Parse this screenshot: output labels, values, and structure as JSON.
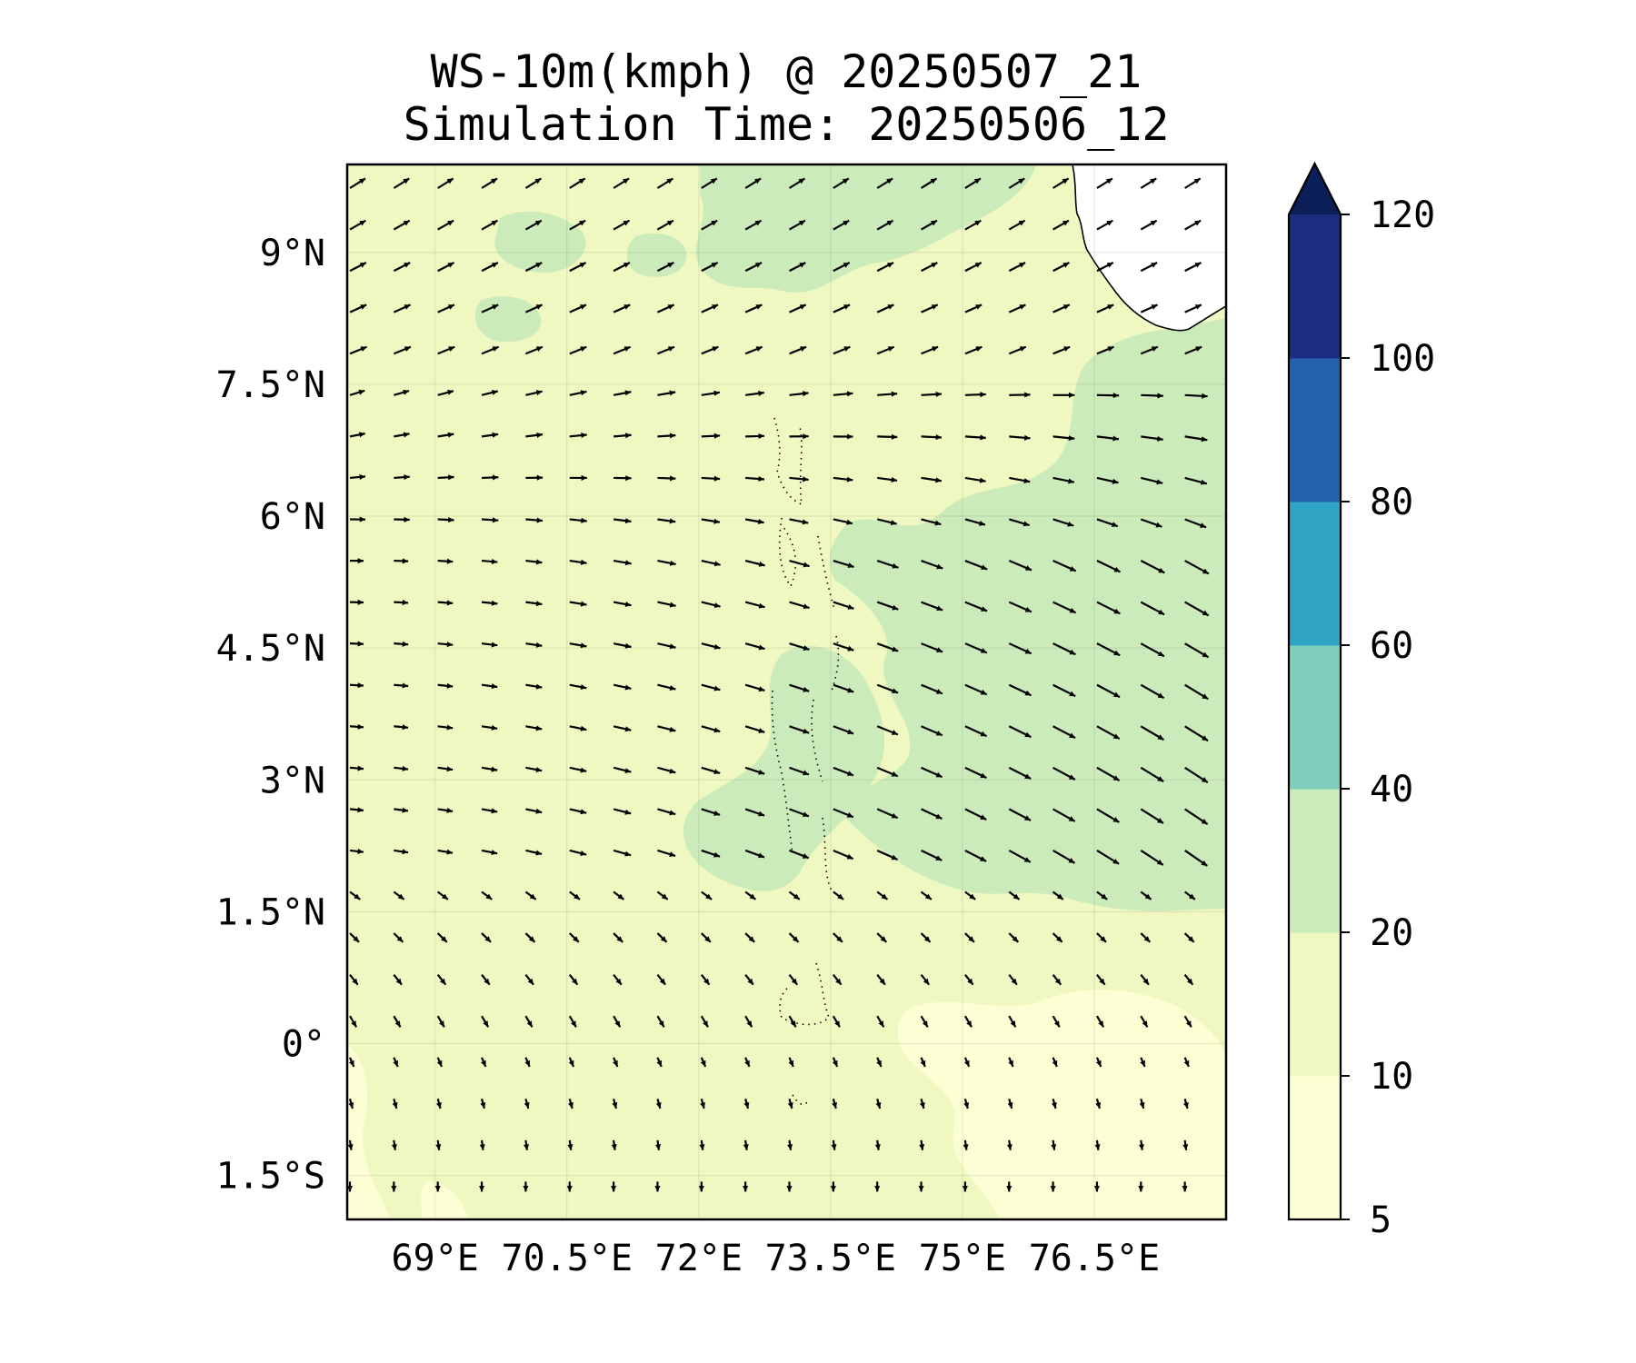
{
  "title": "WS-10m(kmph) @ 20250507_21",
  "subtitle": "Simulation Time: 20250506_12",
  "map": {
    "lon_range": [
      68.0,
      78.0
    ],
    "lat_range": [
      -2.0,
      10.0
    ],
    "x_ticks": [
      {
        "value": 69.0,
        "label": "69°E"
      },
      {
        "value": 70.5,
        "label": "70.5°E"
      },
      {
        "value": 72.0,
        "label": "72°E"
      },
      {
        "value": 73.5,
        "label": "73.5°E"
      },
      {
        "value": 75.0,
        "label": "75°E"
      },
      {
        "value": 76.5,
        "label": "76.5°E"
      }
    ],
    "y_ticks": [
      {
        "value": 9.0,
        "label": "9°N"
      },
      {
        "value": 7.5,
        "label": "7.5°N"
      },
      {
        "value": 6.0,
        "label": "6°N"
      },
      {
        "value": 4.5,
        "label": "4.5°N"
      },
      {
        "value": 3.0,
        "label": "3°N"
      },
      {
        "value": 1.5,
        "label": "1.5°N"
      },
      {
        "value": 0.0,
        "label": "0°"
      },
      {
        "value": -1.5,
        "label": "1.5°S"
      }
    ],
    "gridlines": true,
    "background_color": "#eff8c1",
    "land_color": "#ffffff"
  },
  "colorbar": {
    "extend": "max",
    "levels": [
      5,
      10,
      20,
      40,
      60,
      80,
      100,
      120
    ],
    "tick_labels": [
      "5",
      "10",
      "20",
      "40",
      "60",
      "80",
      "100",
      "120"
    ],
    "colors": [
      "#fdfed4",
      "#eff8c1",
      "#ccebba",
      "#7fcdbb",
      "#2fa4c5",
      "#2262aa",
      "#1c2d81"
    ],
    "extend_color": "#0d1f58"
  }
}
